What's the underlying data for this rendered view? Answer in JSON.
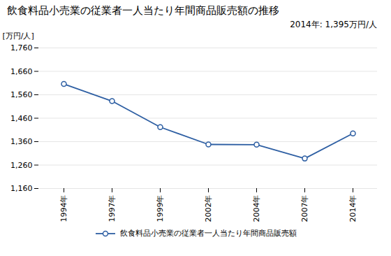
{
  "chart_data": {
    "type": "line",
    "title": "飲食料品小売業の従業者一人当たり年間商品販売額の推移",
    "ylabel": "[万円/人]",
    "annotation": "2014年: 1,395万円/人",
    "categories": [
      "1994年",
      "1997年",
      "1999年",
      "2002年",
      "2004年",
      "2007年",
      "2014年"
    ],
    "series": [
      {
        "name": "飲食料品小売業の従業者一人当たり年間商品販売額",
        "color": "#2E5FA3",
        "marker": "circle",
        "values": [
          1606,
          1533,
          1422,
          1348,
          1347,
          1288,
          1395
        ]
      }
    ],
    "ylim": [
      1160,
      1760
    ],
    "yticks": [
      {
        "value": 1160,
        "label": "1,160"
      },
      {
        "value": 1260,
        "label": "1,260"
      },
      {
        "value": 1360,
        "label": "1,360"
      },
      {
        "value": 1460,
        "label": "1,460"
      },
      {
        "value": 1560,
        "label": "1,560"
      },
      {
        "value": 1660,
        "label": "1,660"
      },
      {
        "value": 1760,
        "label": "1,760"
      }
    ],
    "grid": true,
    "legend": "bottom"
  }
}
